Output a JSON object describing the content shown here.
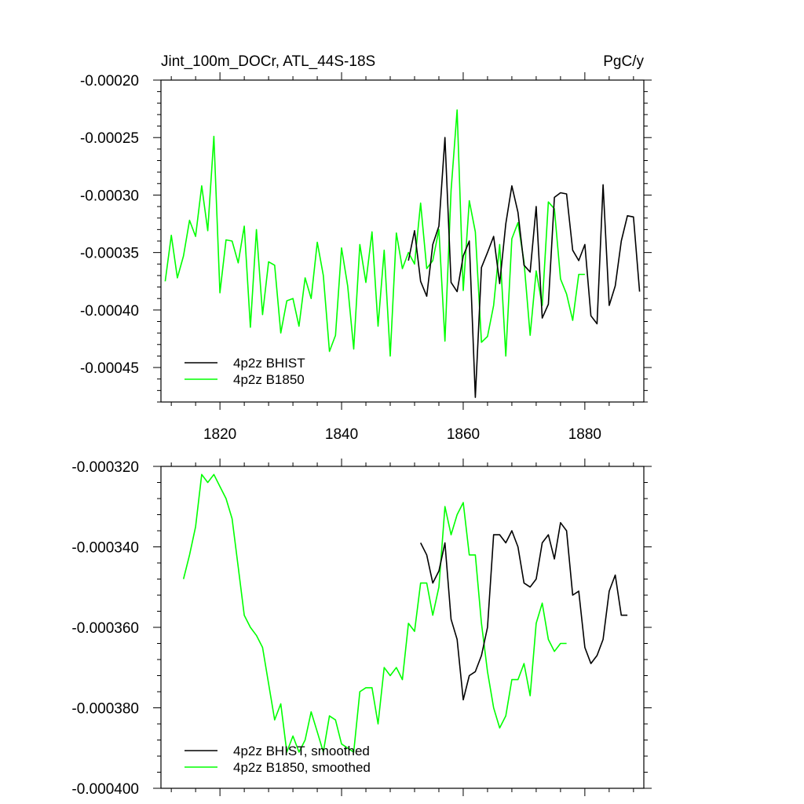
{
  "chart_data": [
    {
      "type": "line",
      "title": "Jint_100m_DOCr, ATL_44S-18S",
      "units": "PgC/y",
      "xlim": [
        1810.3,
        1889.7
      ],
      "ylim": [
        -0.00048,
        -0.0002
      ],
      "xticks": [
        1820,
        1840,
        1860,
        1880
      ],
      "yticks": [
        -0.0002,
        -0.00025,
        -0.0003,
        -0.00035,
        -0.0004,
        -0.00045
      ],
      "ytick_labels": [
        "-0.00020",
        "-0.00025",
        "-0.00030",
        "-0.00035",
        "-0.00040",
        "-0.00045"
      ],
      "legend_position": "bottom-left",
      "series": [
        {
          "name": "4p2z BHIST",
          "color": "#000000",
          "x": [
            1851,
            1852,
            1853,
            1854,
            1855,
            1856,
            1857,
            1858,
            1859,
            1860,
            1861,
            1862,
            1863,
            1864,
            1865,
            1866,
            1867,
            1868,
            1869,
            1870,
            1871,
            1872,
            1873,
            1874,
            1875,
            1876,
            1877,
            1878,
            1879,
            1880,
            1881,
            1882,
            1883,
            1884,
            1885,
            1886,
            1887,
            1888,
            1889
          ],
          "values": [
            -0.000357,
            -0.000331,
            -0.000375,
            -0.000388,
            -0.000343,
            -0.000327,
            -0.00025,
            -0.000376,
            -0.000384,
            -0.000353,
            -0.00034,
            -0.000476,
            -0.000363,
            -0.00035,
            -0.000336,
            -0.000377,
            -0.000325,
            -0.000292,
            -0.000315,
            -0.000361,
            -0.000367,
            -0.00031,
            -0.000407,
            -0.000395,
            -0.000302,
            -0.000298,
            -0.000299,
            -0.000348,
            -0.000357,
            -0.000343,
            -0.000405,
            -0.000412,
            -0.000291,
            -0.000396,
            -0.000379,
            -0.00034,
            -0.000318,
            -0.000319,
            -0.000384
          ]
        },
        {
          "name": "4p2z B1850",
          "color": "#00ff00",
          "x": [
            1810,
            1811,
            1812,
            1813,
            1814,
            1815,
            1816,
            1817,
            1818,
            1819,
            1820,
            1821,
            1822,
            1823,
            1824,
            1825,
            1826,
            1827,
            1828,
            1829,
            1830,
            1831,
            1832,
            1833,
            1834,
            1835,
            1836,
            1837,
            1838,
            1839,
            1840,
            1841,
            1842,
            1843,
            1844,
            1845,
            1846,
            1847,
            1848,
            1849,
            1850,
            1851,
            1852,
            1853,
            1854,
            1855,
            1856,
            1857,
            1858,
            1859,
            1860,
            1861,
            1862,
            1863,
            1864,
            1865,
            1866,
            1867,
            1868,
            1869,
            1870,
            1871,
            1872,
            1873,
            1874,
            1875,
            1876,
            1877,
            1878,
            1879,
            1880
          ],
          "values": [
            -0.000339,
            -0.000375,
            -0.000335,
            -0.000372,
            -0.000353,
            -0.000322,
            -0.000336,
            -0.000292,
            -0.000331,
            -0.000249,
            -0.000385,
            -0.000339,
            -0.00034,
            -0.000359,
            -0.000327,
            -0.000415,
            -0.00033,
            -0.000404,
            -0.000358,
            -0.000361,
            -0.00042,
            -0.000392,
            -0.00039,
            -0.000414,
            -0.000372,
            -0.00039,
            -0.000341,
            -0.00037,
            -0.000436,
            -0.000422,
            -0.000346,
            -0.000379,
            -0.000434,
            -0.000343,
            -0.000376,
            -0.000332,
            -0.000414,
            -0.000348,
            -0.00044,
            -0.000333,
            -0.000364,
            -0.00035,
            -0.00036,
            -0.000307,
            -0.000364,
            -0.000357,
            -0.00033,
            -0.000427,
            -0.000296,
            -0.000226,
            -0.000383,
            -0.000305,
            -0.000332,
            -0.000428,
            -0.000423,
            -0.000396,
            -0.000343,
            -0.00044,
            -0.000338,
            -0.000324,
            -0.000358,
            -0.000422,
            -0.000366,
            -0.000396,
            -0.000306,
            -0.000312,
            -0.000373,
            -0.000386,
            -0.000409,
            -0.000369,
            -0.000369
          ]
        }
      ]
    },
    {
      "type": "line",
      "xlim": [
        1810.3,
        1889.7
      ],
      "ylim": [
        -0.0004,
        -0.00032
      ],
      "xticks": [
        1820,
        1840,
        1860,
        1880
      ],
      "yticks": [
        -0.00032,
        -0.00034,
        -0.00036,
        -0.00038,
        -0.0004
      ],
      "ytick_labels": [
        "-0.000320",
        "-0.000340",
        "-0.000360",
        "-0.000380",
        "-0.000400"
      ],
      "legend_position": "bottom-left",
      "series": [
        {
          "name": "4p2z BHIST, smoothed",
          "color": "#000000",
          "x": [
            1853,
            1854,
            1855,
            1856,
            1857,
            1858,
            1859,
            1860,
            1861,
            1862,
            1863,
            1864,
            1865,
            1866,
            1867,
            1868,
            1869,
            1870,
            1871,
            1872,
            1873,
            1874,
            1875,
            1876,
            1877,
            1878,
            1879,
            1880,
            1881,
            1882,
            1883,
            1884,
            1885,
            1886,
            1887
          ],
          "values": [
            -0.000339,
            -0.000342,
            -0.000349,
            -0.000346,
            -0.000339,
            -0.000358,
            -0.000363,
            -0.000378,
            -0.000372,
            -0.000371,
            -0.000367,
            -0.00036,
            -0.000337,
            -0.000337,
            -0.000339,
            -0.000336,
            -0.00034,
            -0.000349,
            -0.00035,
            -0.000348,
            -0.000339,
            -0.000337,
            -0.000343,
            -0.000334,
            -0.000336,
            -0.000352,
            -0.000351,
            -0.000365,
            -0.000369,
            -0.000367,
            -0.000363,
            -0.000351,
            -0.000347,
            -0.000357,
            -0.000357
          ]
        },
        {
          "name": "4p2z B1850, smoothed",
          "color": "#00ff00",
          "x": [
            1814,
            1815,
            1816,
            1817,
            1818,
            1819,
            1820,
            1821,
            1822,
            1823,
            1824,
            1825,
            1826,
            1827,
            1828,
            1829,
            1830,
            1831,
            1832,
            1833,
            1834,
            1835,
            1836,
            1837,
            1838,
            1839,
            1840,
            1841,
            1842,
            1843,
            1844,
            1845,
            1846,
            1847,
            1848,
            1849,
            1850,
            1851,
            1852,
            1853,
            1854,
            1855,
            1856,
            1857,
            1858,
            1859,
            1860,
            1861,
            1862,
            1863,
            1864,
            1865,
            1866,
            1867,
            1868,
            1869,
            1870,
            1871,
            1872,
            1873,
            1874,
            1875,
            1876,
            1877
          ],
          "values": [
            -0.000348,
            -0.000342,
            -0.000335,
            -0.000322,
            -0.000324,
            -0.000322,
            -0.000325,
            -0.000328,
            -0.000333,
            -0.000345,
            -0.000357,
            -0.00036,
            -0.000362,
            -0.000365,
            -0.000374,
            -0.000383,
            -0.000379,
            -0.000391,
            -0.000387,
            -0.000391,
            -0.000388,
            -0.000381,
            -0.000386,
            -0.000391,
            -0.000382,
            -0.000383,
            -0.000389,
            -0.00039,
            -0.000391,
            -0.000376,
            -0.000375,
            -0.000375,
            -0.000384,
            -0.00037,
            -0.000372,
            -0.00037,
            -0.000373,
            -0.000359,
            -0.000361,
            -0.000349,
            -0.000349,
            -0.000357,
            -0.00035,
            -0.00033,
            -0.000337,
            -0.000332,
            -0.000329,
            -0.000342,
            -0.000342,
            -0.000359,
            -0.000371,
            -0.00038,
            -0.000385,
            -0.000382,
            -0.000373,
            -0.000373,
            -0.000369,
            -0.000377,
            -0.000359,
            -0.000354,
            -0.000363,
            -0.000366,
            -0.000364,
            -0.000364
          ]
        }
      ]
    }
  ]
}
